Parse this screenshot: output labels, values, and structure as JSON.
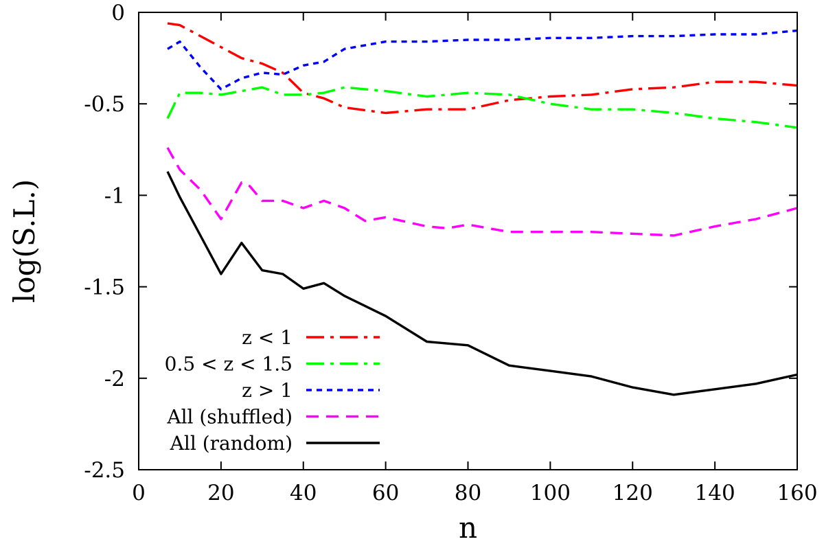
{
  "chart_data": {
    "type": "line",
    "title": "",
    "xlabel": "n",
    "ylabel": "log(S.L.)",
    "xlim": [
      0,
      160
    ],
    "ylim": [
      -2.5,
      0
    ],
    "grid": false,
    "legend_position": "bottom-left",
    "xticks": [
      0,
      20,
      40,
      60,
      80,
      100,
      120,
      140,
      160
    ],
    "yticks": [
      -2.5,
      -2,
      -1.5,
      -1,
      -0.5,
      0
    ],
    "xtick_labels": [
      "0",
      "20",
      "40",
      "60",
      "80",
      "100",
      "120",
      "140",
      "160"
    ],
    "ytick_labels": [
      "-2.5",
      "-2",
      "-1.5",
      "-1",
      "-0.5",
      "0"
    ],
    "series": [
      {
        "name": "z < 1",
        "color": "#ff0000",
        "style": "dash-dot",
        "x": [
          7,
          10,
          15,
          20,
          25,
          30,
          35,
          40,
          45,
          50,
          60,
          70,
          80,
          90,
          100,
          110,
          120,
          130,
          140,
          150,
          160
        ],
        "y": [
          -0.06,
          -0.07,
          -0.13,
          -0.19,
          -0.25,
          -0.28,
          -0.33,
          -0.44,
          -0.47,
          -0.52,
          -0.55,
          -0.53,
          -0.53,
          -0.48,
          -0.46,
          -0.45,
          -0.42,
          -0.41,
          -0.38,
          -0.38,
          -0.4
        ]
      },
      {
        "name": "0.5 < z < 1.5",
        "color": "#00ff00",
        "style": "dash-dot",
        "x": [
          7,
          10,
          15,
          20,
          25,
          30,
          35,
          40,
          45,
          50,
          55,
          60,
          70,
          80,
          90,
          100,
          110,
          120,
          130,
          140,
          150,
          160
        ],
        "y": [
          -0.58,
          -0.44,
          -0.44,
          -0.45,
          -0.43,
          -0.41,
          -0.45,
          -0.45,
          -0.44,
          -0.41,
          -0.42,
          -0.43,
          -0.46,
          -0.44,
          -0.45,
          -0.5,
          -0.53,
          -0.53,
          -0.55,
          -0.58,
          -0.6,
          -0.63
        ]
      },
      {
        "name": "z > 1",
        "color": "#0000ff",
        "style": "dotted",
        "x": [
          7,
          10,
          15,
          20,
          25,
          30,
          35,
          40,
          45,
          50,
          60,
          70,
          80,
          90,
          100,
          110,
          120,
          130,
          140,
          150,
          160
        ],
        "y": [
          -0.2,
          -0.16,
          -0.3,
          -0.42,
          -0.36,
          -0.33,
          -0.34,
          -0.29,
          -0.27,
          -0.2,
          -0.16,
          -0.16,
          -0.15,
          -0.15,
          -0.14,
          -0.14,
          -0.13,
          -0.13,
          -0.12,
          -0.12,
          -0.1
        ]
      },
      {
        "name": "All (shuffled)",
        "color": "#ff00ff",
        "style": "dashed",
        "x": [
          7,
          10,
          15,
          20,
          25,
          27,
          30,
          35,
          40,
          45,
          50,
          55,
          60,
          70,
          75,
          80,
          90,
          100,
          110,
          120,
          130,
          140,
          150,
          160
        ],
        "y": [
          -0.74,
          -0.86,
          -0.97,
          -1.13,
          -0.93,
          -0.95,
          -1.03,
          -1.03,
          -1.07,
          -1.03,
          -1.07,
          -1.14,
          -1.12,
          -1.17,
          -1.18,
          -1.16,
          -1.2,
          -1.2,
          -1.2,
          -1.21,
          -1.22,
          -1.17,
          -1.13,
          -1.07
        ]
      },
      {
        "name": "All (random)",
        "color": "#000000",
        "style": "solid",
        "x": [
          7,
          10,
          15,
          20,
          25,
          30,
          35,
          40,
          45,
          50,
          60,
          70,
          80,
          90,
          100,
          110,
          120,
          130,
          140,
          150,
          160
        ],
        "y": [
          -0.87,
          -1.01,
          -1.22,
          -1.43,
          -1.26,
          -1.41,
          -1.43,
          -1.51,
          -1.48,
          -1.55,
          -1.66,
          -1.8,
          -1.82,
          -1.93,
          -1.96,
          -1.99,
          -2.05,
          -2.09,
          -2.06,
          -2.03,
          -1.98
        ]
      }
    ]
  }
}
